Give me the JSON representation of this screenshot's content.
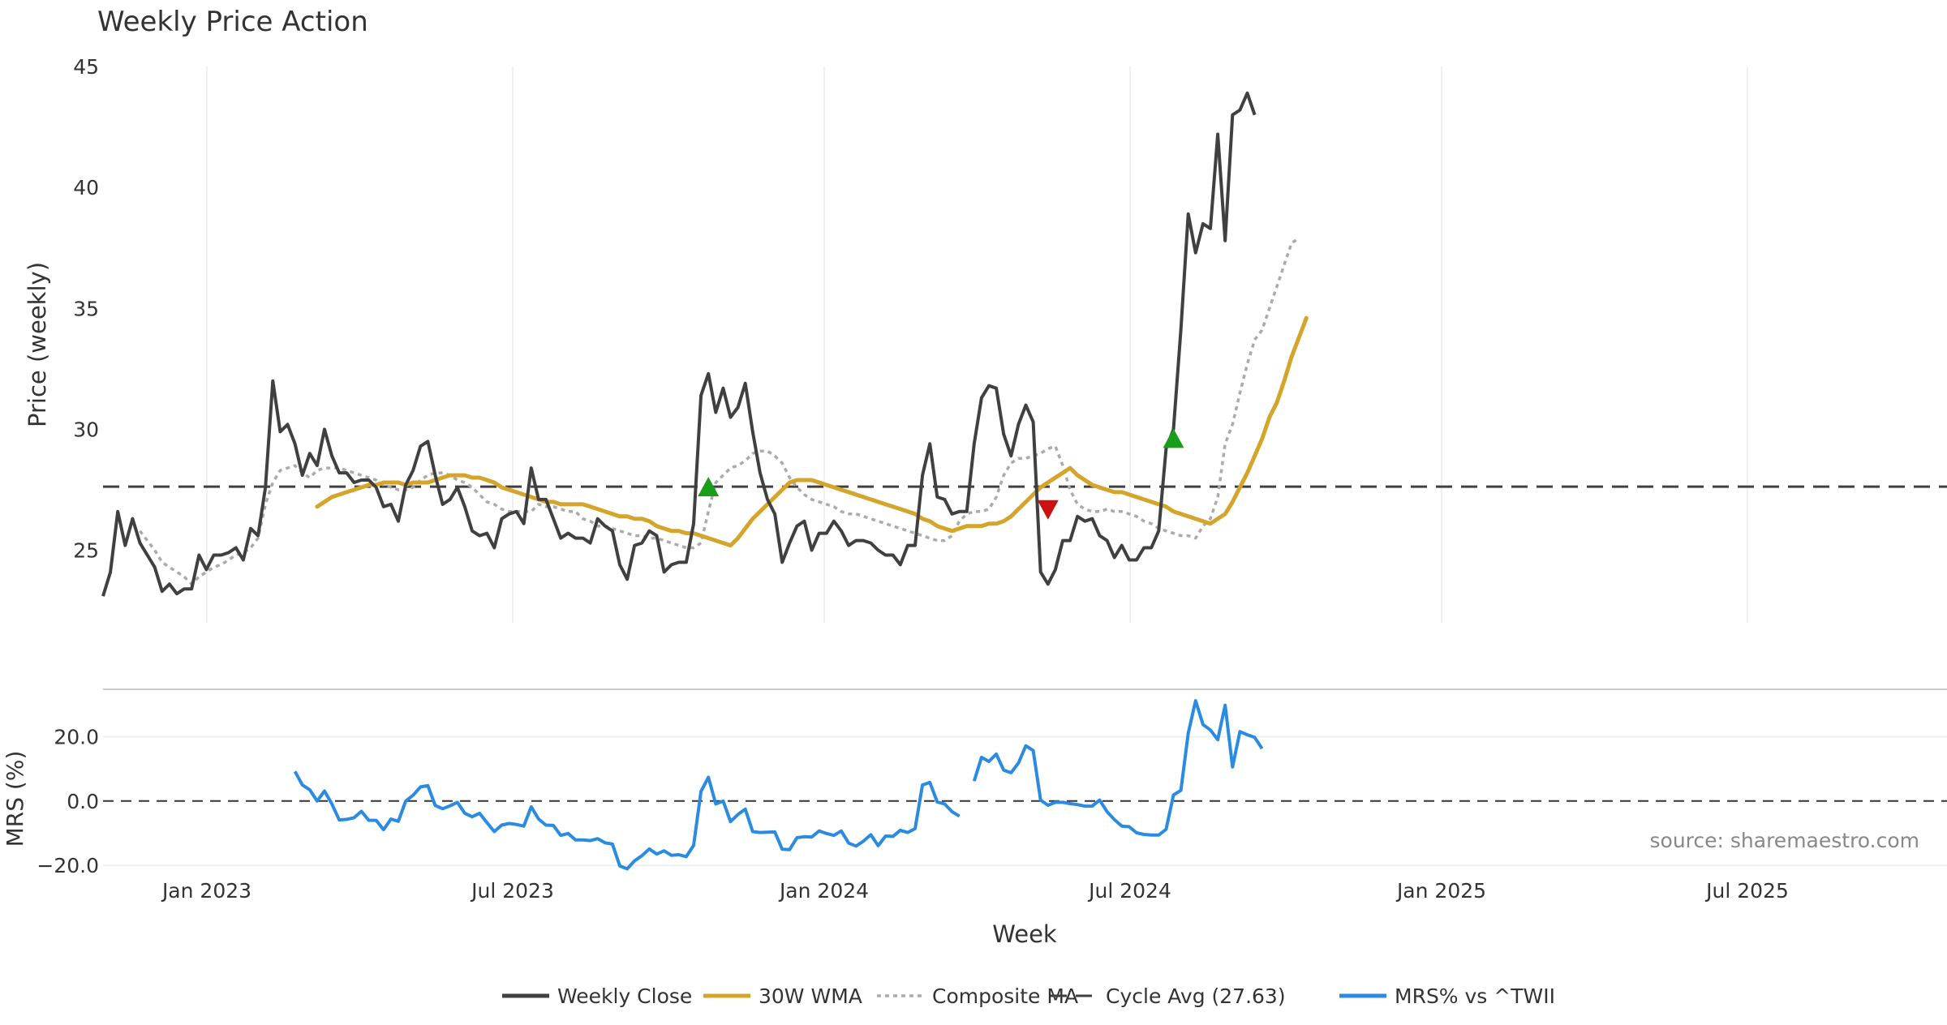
{
  "chart_data": {
    "type": "line",
    "title": "Weekly Price Action",
    "source": "source: sharemaestro.com",
    "xlabel": "Week",
    "x_ticks": [
      "Jan 2023",
      "Jul 2023",
      "Jan 2024",
      "Jul 2024",
      "Jan 2025",
      "Jul 2025"
    ],
    "price_panel": {
      "ylabel": "Price (weekly)",
      "ylim": [
        22,
        45
      ],
      "yticks": [
        "25",
        "30",
        "35",
        "40",
        "45"
      ],
      "cycle_avg": 27.63,
      "series": [
        {
          "name": "Weekly Close",
          "color": "#404040",
          "values": [
            23.1,
            24.1,
            26.6,
            25.2,
            26.3,
            25.3,
            24.8,
            24.3,
            23.3,
            23.6,
            23.2,
            23.4,
            23.4,
            24.8,
            24.2,
            24.8,
            24.8,
            24.9,
            25.1,
            24.6,
            25.9,
            25.6,
            27.6,
            32,
            29.9,
            30.2,
            29.4,
            28.1,
            29,
            28.5,
            30,
            28.9,
            28.2,
            28.2,
            27.8,
            27.9,
            27.9,
            27.6,
            26.8,
            26.9,
            26.2,
            27.7,
            28.3,
            29.3,
            29.5,
            28.1,
            26.9,
            27.1,
            27.6,
            26.8,
            25.8,
            25.6,
            25.7,
            25.1,
            26.3,
            26.5,
            26.6,
            26.1,
            28.4,
            27.1,
            27.1,
            26.3,
            25.5,
            25.7,
            25.5,
            25.5,
            25.3,
            26.3,
            26,
            25.8,
            24.4,
            23.8,
            25.2,
            25.3,
            25.8,
            25.6,
            24.1,
            24.4,
            24.5,
            24.5,
            26.1,
            31.4,
            32.3,
            30.7,
            31.7,
            30.5,
            30.9,
            31.9,
            29.9,
            28.2,
            27.1,
            26.5,
            24.5,
            25.3,
            26,
            26.2,
            25,
            25.7,
            25.7,
            26.2,
            25.8,
            25.2,
            25.4,
            25.4,
            25.3,
            25,
            24.8,
            24.8,
            24.4,
            25.2,
            25.2,
            28.1,
            29.4,
            27.2,
            27.1,
            26.5,
            26.6,
            26.6,
            29.4,
            31.3,
            31.8,
            31.7,
            29.8,
            28.9,
            30.2,
            31,
            30.3,
            24.1,
            23.6,
            24.2,
            25.4,
            25.4,
            26.4,
            26.2,
            26.3,
            25.6,
            25.4,
            24.7,
            25.2,
            24.6,
            24.6,
            25.1,
            25.1,
            25.8,
            29.2,
            30,
            34.1,
            38.9,
            37.3,
            38.5,
            38.3,
            42.2,
            37.8,
            43,
            43.2,
            43.9,
            43
          ]
        },
        {
          "name": "30W WMA",
          "color": "#D4A52A",
          "start_week": 29,
          "values": [
            26.8,
            27,
            27.2,
            27.3,
            27.4,
            27.5,
            27.6,
            27.7,
            27.7,
            27.8,
            27.8,
            27.8,
            27.7,
            27.8,
            27.8,
            27.8,
            27.9,
            28,
            28.1,
            28.1,
            28.1,
            28,
            28,
            27.9,
            27.8,
            27.6,
            27.5,
            27.4,
            27.3,
            27.2,
            27.1,
            27,
            27,
            26.9,
            26.9,
            26.9,
            26.9,
            26.8,
            26.7,
            26.6,
            26.5,
            26.4,
            26.4,
            26.3,
            26.3,
            26.2,
            26,
            25.9,
            25.8,
            25.8,
            25.7,
            25.7,
            25.6,
            25.5,
            25.4,
            25.3,
            25.2,
            25.5,
            25.9,
            26.3,
            26.6,
            26.9,
            27.2,
            27.5,
            27.8,
            27.9,
            27.9,
            27.9,
            27.8,
            27.7,
            27.6,
            27.5,
            27.4,
            27.3,
            27.2,
            27.1,
            27,
            26.9,
            26.8,
            26.7,
            26.6,
            26.5,
            26.3,
            26.2,
            26,
            25.9,
            25.8,
            25.9,
            26,
            26,
            26,
            26.1,
            26.1,
            26.2,
            26.4,
            26.7,
            27,
            27.3,
            27.6,
            27.8,
            28,
            28.2,
            28.4,
            28.1,
            27.9,
            27.7,
            27.6,
            27.5,
            27.4,
            27.4,
            27.3,
            27.2,
            27.1,
            27,
            26.9,
            26.8,
            26.6,
            26.5,
            26.4,
            26.3,
            26.2,
            26.1,
            26.3,
            26.5,
            27,
            27.6,
            28.2,
            28.9,
            29.6,
            30.5,
            31.1,
            32,
            33,
            33.8,
            34.6
          ]
        },
        {
          "name": "Composite MA",
          "color": "#ababab",
          "start_week": 5,
          "values": [
            25.8,
            25.4,
            25,
            24.5,
            24.3,
            24.1,
            23.9,
            23.6,
            23.9,
            24.1,
            24.3,
            24.4,
            24.6,
            24.8,
            24.9,
            25.1,
            25.5,
            26.9,
            27.8,
            28.3,
            28.4,
            28.5,
            28.2,
            28,
            28.3,
            28.4,
            28.4,
            28.4,
            28.3,
            28.2,
            28.1,
            28,
            27.9,
            27.7,
            27.6,
            27.5,
            27.5,
            27.6,
            27.9,
            28.1,
            28.2,
            28.2,
            28.1,
            27.9,
            27.8,
            27.6,
            27.3,
            27,
            26.9,
            26.7,
            26.6,
            26.6,
            26.6,
            26.6,
            26.9,
            26.8,
            26.8,
            26.7,
            26.6,
            26.6,
            26.3,
            26.2,
            26,
            26,
            25.9,
            25.8,
            25.7,
            25.6,
            25.6,
            25.5,
            25.5,
            25.4,
            25.3,
            25.2,
            25.1,
            25.1,
            25.3,
            26.6,
            27.8,
            28.1,
            28.4,
            28.5,
            28.7,
            29,
            29.1,
            29.1,
            28.9,
            28.6,
            28,
            27.6,
            27.3,
            27.1,
            27,
            26.9,
            26.8,
            26.6,
            26.5,
            26.5,
            26.4,
            26.3,
            26.2,
            26.1,
            26,
            25.9,
            25.8,
            25.7,
            25.6,
            25.5,
            25.4,
            25.4,
            25.6,
            26.2,
            26.5,
            26.6,
            26.6,
            26.7,
            27.2,
            28.1,
            28.6,
            28.8,
            28.8,
            28.9,
            29,
            29.2,
            29.3,
            28.5,
            27.5,
            26.9,
            26.7,
            26.6,
            26.6,
            26.7,
            26.6,
            26.6,
            26.5,
            26.4,
            26.2,
            26.1,
            25.9,
            25.8,
            25.7,
            25.6,
            25.6,
            25.5,
            26,
            26.3,
            27.2,
            29.4,
            30.2,
            31.5,
            32.7,
            33.7,
            34.1,
            35,
            35.9,
            36.8,
            37.7,
            37.9
          ]
        },
        {
          "name": "Cycle Avg (27.63)",
          "color": "#404040",
          "constant": 27.63
        }
      ],
      "markers": [
        {
          "type": "buy",
          "week": 82,
          "value": 27.6,
          "color": "#1a9e1a"
        },
        {
          "type": "sell",
          "week": 128,
          "value": 26.7,
          "color": "#cc1111"
        },
        {
          "type": "buy",
          "week": 145,
          "value": 29.6,
          "color": "#1a9e1a"
        }
      ]
    },
    "mrs_panel": {
      "ylabel": "MRS (%)",
      "ylim": [
        -22,
        33
      ],
      "yticks": [
        "20.0",
        "0.0",
        "−20.0"
      ],
      "series": {
        "name": "MRS% vs ^TWII",
        "color": "#2a8be0",
        "segments": [
          {
            "start_week": 26,
            "values": [
              9.2,
              5,
              3.5,
              0,
              3.1,
              -0.9,
              -5.9,
              -5.7,
              -5.2,
              -3.2,
              -6,
              -6,
              -8.9,
              -5.6,
              -6.3,
              0,
              1.8,
              4.4,
              4.8,
              -1.4,
              -2.4,
              -1.5,
              -0.4,
              -3.8,
              -4.9,
              -3.8,
              -6.7,
              -9.5,
              -7.5,
              -7,
              -7.3,
              -7.8,
              -1.8,
              -5.6,
              -7.5,
              -7.6,
              -10.7,
              -10.1,
              -12.1,
              -12.1,
              -12.3,
              -11.7,
              -13,
              -13.4,
              -20.2,
              -21.1,
              -18.6,
              -17,
              -14.9,
              -16.5,
              -15.5,
              -16.9,
              -16.7,
              -17.3,
              -13.8,
              3,
              7.4,
              -0.9,
              0,
              -6.4,
              -4.2,
              -2.5,
              -9.5,
              -9.8,
              -9.7,
              -9.6,
              -15,
              -15.1,
              -11.4,
              -11.1,
              -11.2,
              -9.3,
              -10.1,
              -10.7,
              -9.3,
              -13.1,
              -14,
              -12.5,
              -10.5,
              -13.9,
              -10.9,
              -11,
              -9.1,
              -9.8,
              -8.6,
              5,
              5.8,
              -0.3,
              -0.9,
              -3.3,
              -4.7
            ]
          },
          {
            "start_week": 118,
            "values": [
              6.2,
              13.6,
              12.3,
              14.6,
              9.6,
              8.8,
              11.8,
              17.2,
              15.7,
              0.3,
              -1.3,
              -0.4,
              -0.4,
              -0.8,
              -1.1,
              -1.6,
              -1.6,
              0.3,
              -3.3,
              -5.8,
              -7.8,
              -8,
              -9.9,
              -10.4,
              -10.6,
              -10.6,
              -8.8,
              1.9,
              3.3,
              21.1,
              31.2,
              23.8,
              22.1,
              19.1,
              29.8,
              10.6,
              21.6,
              20.6,
              19.8,
              16.3
            ]
          }
        ]
      }
    },
    "legend": [
      {
        "label": "Weekly Close",
        "color": "#404040",
        "style": "solid-thick"
      },
      {
        "label": "30W WMA",
        "color": "#D4A52A",
        "style": "solid-thick"
      },
      {
        "label": "Composite MA",
        "color": "#ababab",
        "style": "dotted"
      },
      {
        "label": "Cycle Avg (27.63)",
        "color": "#404040",
        "style": "dashed"
      },
      {
        "label": "MRS% vs ^TWII",
        "color": "#2a8be0",
        "style": "solid-thick"
      }
    ]
  }
}
